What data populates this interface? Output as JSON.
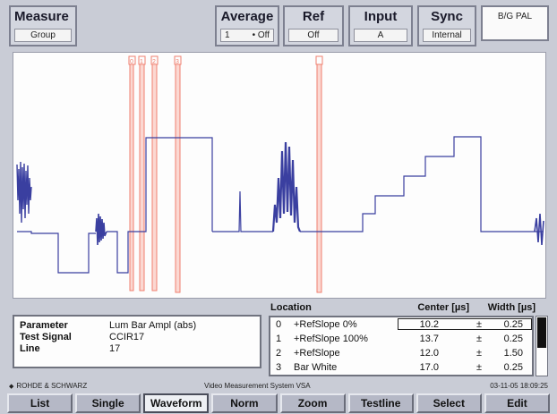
{
  "header": {
    "measure": {
      "title": "Measure",
      "value": "Group"
    },
    "average": {
      "title": "Average",
      "count": "1",
      "mode": "• Off"
    },
    "ref": {
      "title": "Ref",
      "value": "Off"
    },
    "input": {
      "title": "Input",
      "value": "A"
    },
    "sync": {
      "title": "Sync",
      "value": "Internal"
    },
    "standard": "B/G PAL"
  },
  "waveform": {
    "trace_color": "#3a3fa0",
    "marker_color": "#f08070",
    "marker_labels": [
      "0",
      "1",
      "2",
      "3"
    ]
  },
  "parameters": [
    {
      "label": "Parameter",
      "value": "Lum Bar Ampl (abs)"
    },
    {
      "label": "Test Signal",
      "value": "CCIR17"
    },
    {
      "label": "Line",
      "value": "17"
    }
  ],
  "location_table": {
    "headers": {
      "location": "Location",
      "center": "Center [µs]",
      "width": "Width [µs]"
    },
    "rows": [
      {
        "index": "0",
        "name": "+RefSlope 0%",
        "center": "10.2",
        "pm": "±",
        "width": "0.25"
      },
      {
        "index": "1",
        "name": "+RefSlope 100%",
        "center": "13.7",
        "pm": "±",
        "width": "0.25"
      },
      {
        "index": "2",
        "name": "+RefSlope",
        "center": "12.0",
        "pm": "±",
        "width": "1.50"
      },
      {
        "index": "3",
        "name": "Bar White",
        "center": "17.0",
        "pm": "±",
        "width": "0.25"
      }
    ],
    "selected_row": 0
  },
  "status": {
    "brand": "ROHDE & SCHWARZ",
    "system": "Video Measurement System VSA",
    "datetime": "03-11-05  18:09:25"
  },
  "softkeys": [
    {
      "label": "List",
      "active": false
    },
    {
      "label": "Single",
      "active": false
    },
    {
      "label": "Waveform",
      "active": true
    },
    {
      "label": "Norm",
      "active": false
    },
    {
      "label": "Zoom",
      "active": false
    },
    {
      "label": "Testline",
      "active": false
    },
    {
      "label": "Select",
      "active": false
    },
    {
      "label": "Edit",
      "active": false
    }
  ]
}
